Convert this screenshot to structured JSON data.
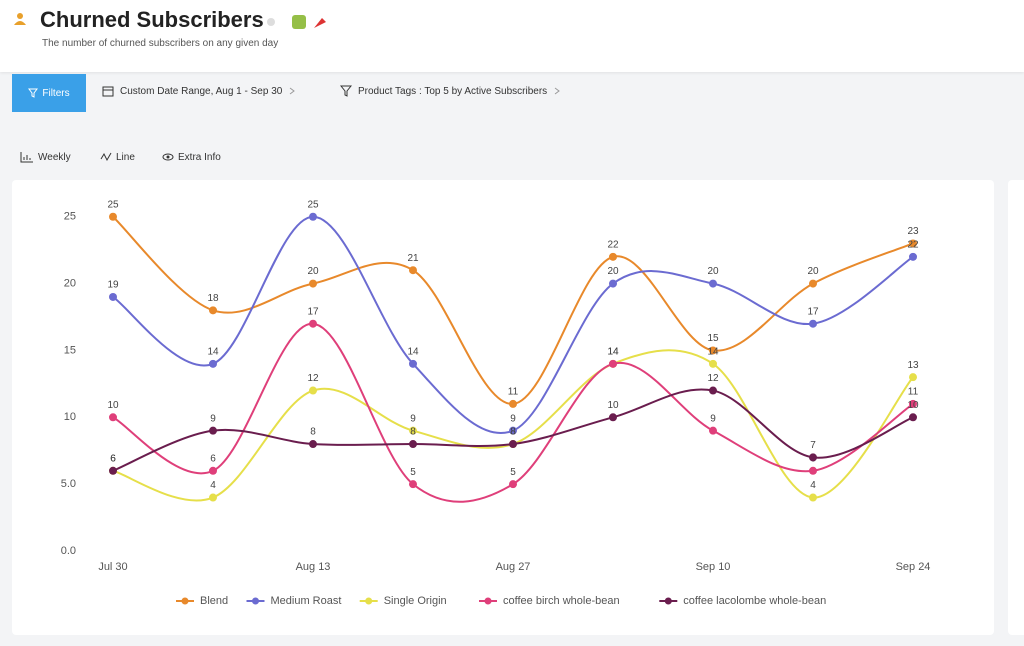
{
  "header": {
    "title": "Churned Subscribers",
    "subtitle": "The number of churned subscribers on any given day"
  },
  "toolbar": {
    "filters": "Filters",
    "date_range": "Custom Date Range, Aug 1 - Sep 30",
    "product_tags": "Product Tags : Top 5 by Active Subscribers"
  },
  "view_options": [
    "Weekly",
    "Line",
    "Extra Info"
  ],
  "chart_data": {
    "type": "line",
    "categories": [
      "Jul 30",
      null,
      "Aug 13",
      null,
      "Aug 27",
      null,
      "Sep 10",
      null,
      "Sep 24"
    ],
    "series": [
      {
        "name": "Blend",
        "color": "#e8892b",
        "values": [
          25,
          18,
          20,
          21,
          11,
          22,
          15,
          20,
          23
        ]
      },
      {
        "name": "Medium Roast",
        "color": "#6b6bd1",
        "values": [
          19,
          14,
          25,
          14,
          9,
          20,
          20,
          17,
          22
        ]
      },
      {
        "name": "Single Origin",
        "color": "#e6df4a",
        "values": [
          6,
          4,
          12,
          9,
          8,
          14,
          14,
          4,
          13
        ]
      },
      {
        "name": "coffee birch whole-bean",
        "color": "#df3f7a",
        "values": [
          10,
          6,
          17,
          5,
          5,
          14,
          9,
          6,
          11
        ]
      },
      {
        "name": "coffee lacolombe whole-bean",
        "color": "#6a1d4e",
        "values": [
          6,
          9,
          8,
          8,
          8,
          10,
          12,
          7,
          10
        ]
      }
    ],
    "ylim": [
      0,
      27
    ],
    "yticks": [
      {
        "value": 0,
        "label": "0.0"
      },
      {
        "value": 5,
        "label": "5.0"
      },
      10,
      15,
      20,
      25
    ],
    "grid": false,
    "legend": "bottom"
  }
}
